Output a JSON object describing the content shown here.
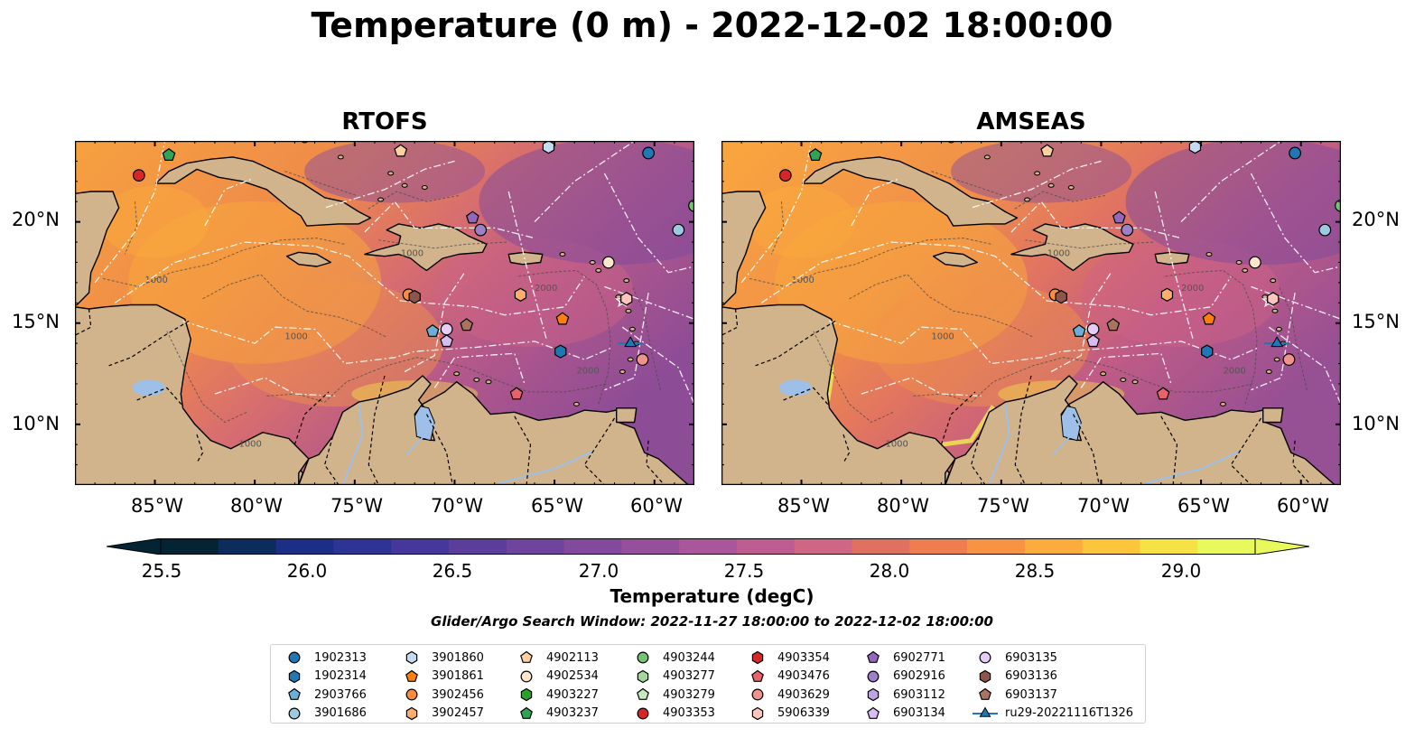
{
  "title": "Temperature (0 m) - 2022-12-02 18:00:00",
  "panels": [
    {
      "title": "RTOFS"
    },
    {
      "title": "AMSEAS"
    }
  ],
  "lon_ticks": [
    "85°W",
    "80°W",
    "75°W",
    "70°W",
    "65°W",
    "60°W"
  ],
  "lat_ticks": [
    "20°N",
    "15°N",
    "10°N"
  ],
  "map_extent": {
    "lon": [
      -89,
      -58
    ],
    "lat": [
      7,
      24
    ]
  },
  "isobath_labels": [
    "1000",
    "2000"
  ],
  "colorbar": {
    "label": "Temperature (degC)",
    "ticks": [
      "25.5",
      "26.0",
      "26.5",
      "27.0",
      "27.5",
      "28.0",
      "28.5",
      "29.0"
    ],
    "range": [
      25.25,
      29.25
    ],
    "extend": "both",
    "colormap": "thermal",
    "colors": [
      "#042333",
      "#0c2c5c",
      "#1a2f85",
      "#2e3396",
      "#45379b",
      "#5b3d9c",
      "#6e449c",
      "#82499c",
      "#964f9a",
      "#a9569a",
      "#bd5d92",
      "#cf6683",
      "#e07060",
      "#ee7e4f",
      "#f99344",
      "#fcab3d",
      "#fbc63b",
      "#f6e244",
      "#e8fa5b"
    ]
  },
  "search_window": "Glider/Argo Search Window: 2022-11-27 18:00:00 to 2022-12-02 18:00:00",
  "legend": {
    "items": [
      {
        "id": "1902313",
        "marker": "circle",
        "color": "#1f77b4"
      },
      {
        "id": "1902314",
        "marker": "hexagon",
        "color": "#1f77b4"
      },
      {
        "id": "2903766",
        "marker": "pentagon",
        "color": "#6baed6"
      },
      {
        "id": "3901686",
        "marker": "circle",
        "color": "#9ecae1"
      },
      {
        "id": "3901860",
        "marker": "hexagon",
        "color": "#c6dbef"
      },
      {
        "id": "3901861",
        "marker": "pentagon",
        "color": "#ff7f0e"
      },
      {
        "id": "3902456",
        "marker": "circle",
        "color": "#fd8d3c"
      },
      {
        "id": "3902457",
        "marker": "hexagon",
        "color": "#fdae6b"
      },
      {
        "id": "4902113",
        "marker": "pentagon",
        "color": "#fdd0a2"
      },
      {
        "id": "4902534",
        "marker": "circle",
        "color": "#fee6ce"
      },
      {
        "id": "4903227",
        "marker": "hexagon",
        "color": "#2ca02c"
      },
      {
        "id": "4903237",
        "marker": "pentagon",
        "color": "#31a354"
      },
      {
        "id": "4903244",
        "marker": "circle",
        "color": "#74c476"
      },
      {
        "id": "4903277",
        "marker": "hexagon",
        "color": "#a1d99b"
      },
      {
        "id": "4903279",
        "marker": "pentagon",
        "color": "#c7e9c0"
      },
      {
        "id": "4903353",
        "marker": "circle",
        "color": "#d62728"
      },
      {
        "id": "4903354",
        "marker": "hexagon",
        "color": "#d62728"
      },
      {
        "id": "4903476",
        "marker": "pentagon",
        "color": "#e7636b"
      },
      {
        "id": "4903629",
        "marker": "circle",
        "color": "#f0938f"
      },
      {
        "id": "5906339",
        "marker": "hexagon",
        "color": "#fcc5c0"
      },
      {
        "id": "6902771",
        "marker": "pentagon",
        "color": "#9467bd"
      },
      {
        "id": "6902916",
        "marker": "circle",
        "color": "#9e80c9"
      },
      {
        "id": "6903112",
        "marker": "hexagon",
        "color": "#bca4e0"
      },
      {
        "id": "6903134",
        "marker": "pentagon",
        "color": "#d6bcf0"
      },
      {
        "id": "6903135",
        "marker": "circle",
        "color": "#e6cdf7"
      },
      {
        "id": "6903136",
        "marker": "hexagon",
        "color": "#8c564b"
      },
      {
        "id": "6903137",
        "marker": "pentagon",
        "color": "#a8735f"
      },
      {
        "id": "ru29-20221116T1326",
        "marker": "triangle-line",
        "color": "#1f77b4"
      }
    ]
  },
  "markers": [
    {
      "id": "1902313",
      "lon": -60.3,
      "lat": 23.4
    },
    {
      "id": "4903237",
      "lon": -84.3,
      "lat": 23.3
    },
    {
      "id": "4903353",
      "lon": -85.8,
      "lat": 22.3
    },
    {
      "id": "4902113",
      "lon": -72.7,
      "lat": 23.5
    },
    {
      "id": "3901860",
      "lon": -65.3,
      "lat": 23.7
    },
    {
      "id": "4903244",
      "lon": -58.0,
      "lat": 20.8
    },
    {
      "id": "6902771",
      "lon": -69.1,
      "lat": 20.2
    },
    {
      "id": "6902916",
      "lon": -68.7,
      "lat": 19.6
    },
    {
      "id": "3901686",
      "lon": -58.8,
      "lat": 19.6
    },
    {
      "id": "4902534",
      "lon": -62.3,
      "lat": 18.0
    },
    {
      "id": "3902456",
      "lon": -72.3,
      "lat": 16.4
    },
    {
      "id": "6903136",
      "lon": -72.0,
      "lat": 16.3
    },
    {
      "id": "3902457",
      "lon": -66.7,
      "lat": 16.4
    },
    {
      "id": "5906339",
      "lon": -61.4,
      "lat": 16.2
    },
    {
      "id": "3901861",
      "lon": -64.6,
      "lat": 15.2
    },
    {
      "id": "6903137",
      "lon": -69.4,
      "lat": 14.9
    },
    {
      "id": "2903766",
      "lon": -71.1,
      "lat": 14.6
    },
    {
      "id": "6903135",
      "lon": -70.4,
      "lat": 14.7
    },
    {
      "id": "6903134",
      "lon": -70.4,
      "lat": 14.1
    },
    {
      "id": "1902314",
      "lon": -64.7,
      "lat": 13.6
    },
    {
      "id": "ru29-20221116T1326",
      "lon": -61.2,
      "lat": 14.0
    },
    {
      "id": "4903629",
      "lon": -60.6,
      "lat": 13.2
    },
    {
      "id": "4903476",
      "lon": -66.9,
      "lat": 11.5
    }
  ]
}
